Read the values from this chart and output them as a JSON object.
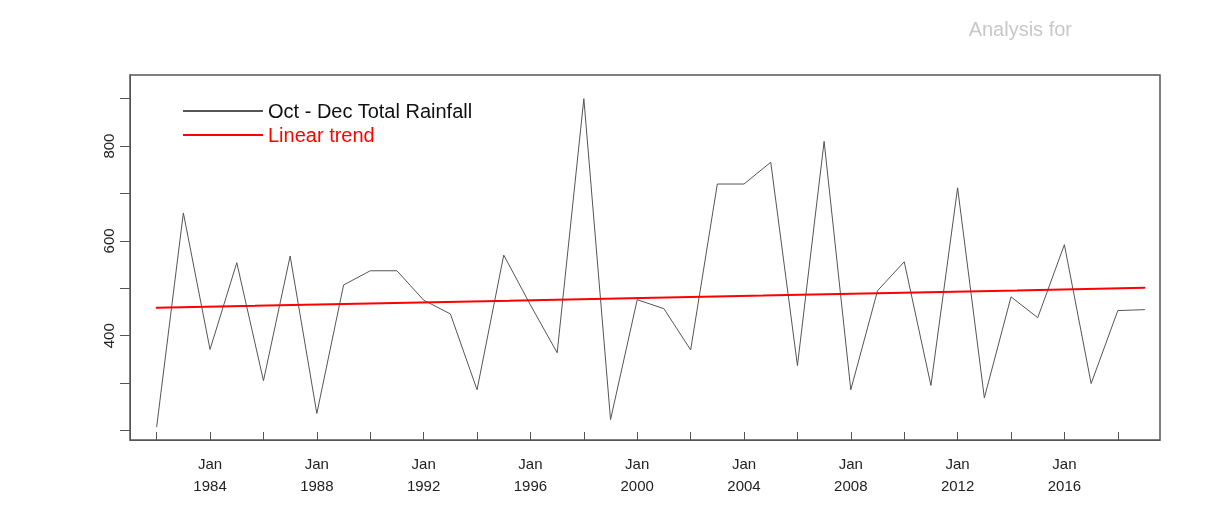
{
  "chart_data": {
    "type": "line",
    "title": "Analysis for",
    "x": [
      "1982",
      "1983",
      "1984",
      "1985",
      "1986",
      "1987",
      "1988",
      "1989",
      "1990",
      "1991",
      "1992",
      "1993",
      "1994",
      "1995",
      "1996",
      "1997",
      "1998",
      "1999",
      "2000",
      "2001",
      "2002",
      "2003",
      "2004",
      "2005",
      "2006",
      "2007",
      "2008",
      "2009",
      "2010",
      "2011",
      "2012",
      "2013",
      "2014",
      "2015",
      "2016",
      "2017",
      "2018",
      "2019"
    ],
    "series": [
      {
        "name": "Oct - Dec Total Rainfall",
        "color": "#555555",
        "values": [
          208,
          659,
          371,
          554,
          305,
          568,
          236,
          507,
          537,
          537,
          475,
          446,
          286,
          570,
          465,
          364,
          900,
          223,
          476,
          457,
          370,
          720,
          720,
          766,
          337,
          810,
          286,
          495,
          556,
          295,
          712,
          269,
          482,
          438,
          592,
          299,
          453,
          455
        ]
      },
      {
        "name": "Linear trend",
        "type": "line",
        "color": "#ff0000",
        "x": [
          "1982",
          "2019"
        ],
        "values": [
          459,
          501
        ]
      }
    ],
    "xlim": [
      "1981-01",
      "2019-08"
    ],
    "xticks": [
      {
        "value": "1982",
        "label": null
      },
      {
        "value": "1984",
        "label": "Jan\n1984"
      },
      {
        "value": "1986",
        "label": null
      },
      {
        "value": "1988",
        "label": "Jan\n1988"
      },
      {
        "value": "1990",
        "label": null
      },
      {
        "value": "1992",
        "label": "Jan\n1992"
      },
      {
        "value": "1994",
        "label": null
      },
      {
        "value": "1996",
        "label": "Jan\n1996"
      },
      {
        "value": "1998",
        "label": null
      },
      {
        "value": "2000",
        "label": "Jan\n2000"
      },
      {
        "value": "2002",
        "label": null
      },
      {
        "value": "2004",
        "label": "Jan\n2004"
      },
      {
        "value": "2006",
        "label": null
      },
      {
        "value": "2008",
        "label": "Jan\n2008"
      },
      {
        "value": "2010",
        "label": null
      },
      {
        "value": "2012",
        "label": "Jan\n2012"
      },
      {
        "value": "2014",
        "label": null
      },
      {
        "value": "2016",
        "label": "Jan\n2016"
      },
      {
        "value": "2018",
        "label": null
      }
    ],
    "ylim": [
      180,
      950
    ],
    "yticks": [
      {
        "value": 200,
        "label": null
      },
      {
        "value": 300,
        "label": null
      },
      400,
      {
        "value": 500,
        "label": null
      },
      600,
      {
        "value": 700,
        "label": null
      },
      800,
      {
        "value": 900,
        "label": null
      }
    ],
    "grid": false,
    "legend": "top left",
    "marker": "none",
    "line_style": "solid"
  }
}
